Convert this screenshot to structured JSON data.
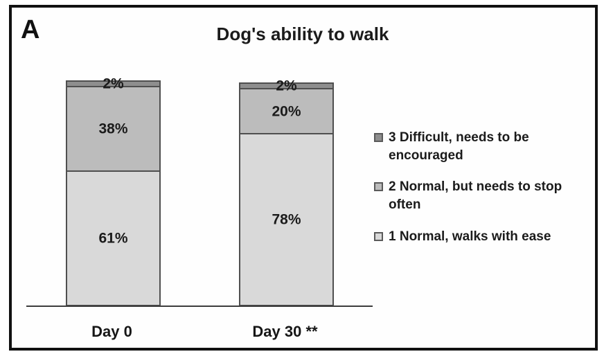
{
  "panel_label": "A",
  "chart_data": {
    "type": "bar",
    "stacked": true,
    "title": "Dog's ability to walk",
    "categories": [
      "Day 0",
      "Day 30 **"
    ],
    "series": [
      {
        "name": "1 Normal, walks with ease",
        "values": [
          61,
          78
        ],
        "color": "#d9d9d9"
      },
      {
        "name": "2 Normal, but needs to stop often",
        "values": [
          38,
          20
        ],
        "color": "#bcbcbc"
      },
      {
        "name": "3 Difficult, needs to be encouraged",
        "values": [
          2,
          2
        ],
        "color": "#8e8e8e"
      }
    ],
    "value_label_suffix": "%",
    "legend_position": "right",
    "legend_order": "reversed",
    "ylim": [
      0,
      100
    ],
    "grid": false,
    "y_axis_visible": false,
    "x_axis_visible": true
  }
}
